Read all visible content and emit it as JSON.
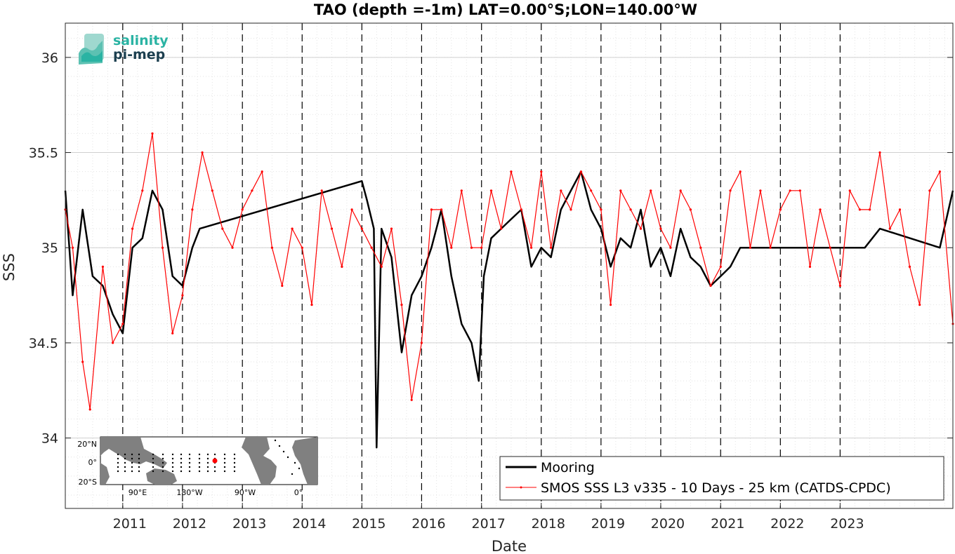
{
  "chart_data": {
    "type": "line",
    "title": "TAO (depth =-1m) LAT=0.00°S;LON=140.00°W",
    "xlabel": "Date",
    "ylabel": "SSS",
    "xlim": [
      "2010-01-15",
      "2024-11-20"
    ],
    "ylim": [
      33.63,
      36.18
    ],
    "yticks": [
      34,
      34.5,
      35,
      35.5,
      36
    ],
    "ytick_labels": [
      "34",
      "34.5",
      "35",
      "35.5",
      "36"
    ],
    "xticks": [
      "2011-01-01",
      "2012-01-01",
      "2013-01-01",
      "2014-01-01",
      "2015-01-01",
      "2016-01-01",
      "2017-01-01",
      "2018-01-01",
      "2019-01-01",
      "2020-01-01",
      "2021-01-01",
      "2022-01-01",
      "2023-01-01"
    ],
    "xtick_labels": [
      "2011",
      "2012",
      "2013",
      "2014",
      "2015",
      "2016",
      "2017",
      "2018",
      "2019",
      "2020",
      "2021",
      "2022",
      "2023"
    ],
    "grid": true,
    "legend_position": "bottom-right",
    "series": [
      {
        "name": "Mooring",
        "color": "#000000",
        "x": [
          "2010-01-15",
          "2010-03-01",
          "2010-05-01",
          "2010-07-01",
          "2010-09-01",
          "2010-11-01",
          "2011-01-01",
          "2011-03-01",
          "2011-05-01",
          "2011-07-01",
          "2011-09-01",
          "2011-11-01",
          "2012-01-01",
          "2012-03-01",
          "2012-04-15",
          "2015-01-01",
          "2015-02-01",
          "2015-03-15",
          "2015-04-01",
          "2015-05-01",
          "2015-07-01",
          "2015-09-01",
          "2015-11-01",
          "2016-01-01",
          "2016-03-01",
          "2016-05-01",
          "2016-07-01",
          "2016-09-01",
          "2016-11-01",
          "2016-12-15",
          "2017-01-15",
          "2017-03-01",
          "2017-05-01",
          "2017-07-01",
          "2017-09-01",
          "2017-11-01",
          "2018-01-01",
          "2018-03-01",
          "2018-05-01",
          "2018-07-01",
          "2018-09-01",
          "2018-11-01",
          "2019-01-01",
          "2019-03-01",
          "2019-05-01",
          "2019-07-01",
          "2019-09-01",
          "2019-11-01",
          "2020-01-01",
          "2020-03-01",
          "2020-05-01",
          "2020-07-01",
          "2020-09-01",
          "2020-11-01",
          "2021-01-01",
          "2021-03-01",
          "2021-05-01",
          "2023-06-01",
          "2023-09-01",
          "2024-09-01",
          "2024-11-20"
        ],
        "values": [
          35.3,
          34.75,
          35.2,
          34.85,
          34.8,
          34.65,
          34.55,
          35.0,
          35.05,
          35.3,
          35.2,
          34.85,
          34.8,
          35.0,
          35.1,
          35.35,
          35.25,
          35.1,
          33.95,
          35.1,
          34.95,
          34.45,
          34.75,
          34.85,
          35.0,
          35.2,
          34.85,
          34.6,
          34.5,
          34.3,
          34.85,
          35.05,
          35.1,
          35.15,
          35.2,
          34.9,
          35.0,
          34.95,
          35.2,
          35.3,
          35.4,
          35.2,
          35.1,
          34.9,
          35.05,
          35.0,
          35.2,
          34.9,
          35.0,
          34.85,
          35.1,
          34.95,
          34.9,
          34.8,
          34.85,
          34.9,
          35.0,
          35.0,
          35.1,
          35.0,
          35.3
        ]
      },
      {
        "name": "SMOS SSS L3 v335 - 10 Days - 25 km (CATDS-CPDC)",
        "color": "#ff0000",
        "x": [
          "2010-01-15",
          "2010-03-01",
          "2010-05-01",
          "2010-06-15",
          "2010-09-01",
          "2010-11-01",
          "2011-01-01",
          "2011-03-01",
          "2011-05-01",
          "2011-07-01",
          "2011-09-01",
          "2011-11-01",
          "2012-01-01",
          "2012-03-01",
          "2012-05-01",
          "2012-07-01",
          "2012-09-01",
          "2012-11-01",
          "2013-01-01",
          "2013-03-01",
          "2013-05-01",
          "2013-07-01",
          "2013-09-01",
          "2013-11-01",
          "2014-01-01",
          "2014-03-01",
          "2014-05-01",
          "2014-07-01",
          "2014-09-01",
          "2014-11-01",
          "2015-01-01",
          "2015-03-01",
          "2015-05-01",
          "2015-07-01",
          "2015-09-01",
          "2015-11-01",
          "2016-01-01",
          "2016-03-01",
          "2016-05-01",
          "2016-07-01",
          "2016-09-01",
          "2016-11-01",
          "2017-01-01",
          "2017-03-01",
          "2017-05-01",
          "2017-07-01",
          "2017-09-01",
          "2017-11-01",
          "2018-01-01",
          "2018-03-01",
          "2018-05-01",
          "2018-07-01",
          "2018-09-01",
          "2018-11-01",
          "2019-01-01",
          "2019-03-01",
          "2019-05-01",
          "2019-07-01",
          "2019-09-01",
          "2019-11-01",
          "2020-01-01",
          "2020-03-01",
          "2020-05-01",
          "2020-07-01",
          "2020-09-01",
          "2020-11-01",
          "2021-01-01",
          "2021-03-01",
          "2021-05-01",
          "2021-07-01",
          "2021-09-01",
          "2021-11-01",
          "2022-01-01",
          "2022-03-01",
          "2022-05-01",
          "2022-07-01",
          "2022-09-01",
          "2022-11-01",
          "2023-01-01",
          "2023-03-01",
          "2023-05-01",
          "2023-07-01",
          "2023-09-01",
          "2023-11-01",
          "2024-01-01",
          "2024-03-01",
          "2024-05-01",
          "2024-07-01",
          "2024-09-01",
          "2024-11-20"
        ],
        "values": [
          35.2,
          35.0,
          34.4,
          34.15,
          34.9,
          34.5,
          34.6,
          35.1,
          35.3,
          35.6,
          35.0,
          34.55,
          34.75,
          35.2,
          35.5,
          35.3,
          35.1,
          35.0,
          35.2,
          35.3,
          35.4,
          35.0,
          34.8,
          35.1,
          35.0,
          34.7,
          35.3,
          35.1,
          34.9,
          35.2,
          35.1,
          35.0,
          34.9,
          35.1,
          34.7,
          34.2,
          34.5,
          35.2,
          35.2,
          35.0,
          35.3,
          35.0,
          35.0,
          35.3,
          35.1,
          35.4,
          35.2,
          35.0,
          35.4,
          35.0,
          35.3,
          35.2,
          35.4,
          35.3,
          35.2,
          34.7,
          35.3,
          35.2,
          35.1,
          35.3,
          35.1,
          35.0,
          35.3,
          35.2,
          35.0,
          34.8,
          34.9,
          35.3,
          35.4,
          35.0,
          35.3,
          35.0,
          35.2,
          35.3,
          35.3,
          34.9,
          35.2,
          35.0,
          34.8,
          35.3,
          35.2,
          35.2,
          35.5,
          35.1,
          35.2,
          34.9,
          34.7,
          35.3,
          35.4,
          34.6
        ]
      }
    ]
  },
  "logo": {
    "line1": "salinity",
    "line2": "pi-mep"
  },
  "inset_map": {
    "lat_labels": [
      "20°N",
      "0°",
      "20°S"
    ],
    "lon_labels": [
      "90°E",
      "180°W",
      "90°W",
      "0°"
    ]
  },
  "colors": {
    "mooring": "#000000",
    "smos": "#ff0000",
    "grid": "#d9d9d9",
    "event_lines": "#000000",
    "map_land": "#808080",
    "logo_teal": "#2ab3a3",
    "logo_dark": "#1c3f4f"
  }
}
